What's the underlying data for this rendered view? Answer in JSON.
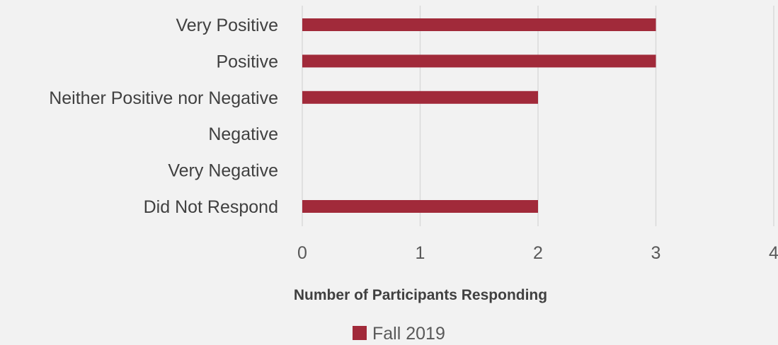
{
  "chart_data": {
    "type": "bar",
    "orientation": "horizontal",
    "categories": [
      "Very Positive",
      "Positive",
      "Neither Positive nor Negative",
      "Negative",
      "Very Negative",
      "Did Not Respond"
    ],
    "series": [
      {
        "name": "Fall 2019",
        "values": [
          3,
          3,
          2,
          0,
          0,
          2
        ]
      }
    ],
    "xticks": [
      0,
      1,
      2,
      3,
      4
    ],
    "xlim": [
      0,
      4
    ],
    "xlabel": "Number of Participants Responding",
    "ylabel": "",
    "grid": true,
    "legend": "bottom",
    "bar_color": "#a12a3a"
  }
}
